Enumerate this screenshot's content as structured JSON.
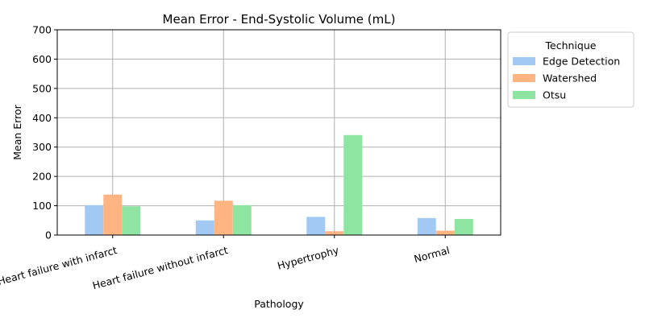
{
  "chart_data": {
    "type": "bar",
    "title": "Mean Error - End-Systolic Volume (mL)",
    "xlabel": "Pathology",
    "ylabel": "Mean Error",
    "categories": [
      "Heart failure with infarct",
      "Heart failure without infarct",
      "Hypertrophy",
      "Normal"
    ],
    "series": [
      {
        "name": "Edge Detection",
        "values": [
          102,
          50,
          62,
          58
        ],
        "color": "#a1c9f4"
      },
      {
        "name": "Watershed",
        "values": [
          138,
          117,
          13,
          15
        ],
        "color": "#ffb482"
      },
      {
        "name": "Otsu",
        "values": [
          98,
          102,
          341,
          55
        ],
        "color": "#8de5a1"
      }
    ],
    "ylim": [
      0,
      700
    ],
    "yticks": [
      0,
      100,
      200,
      300,
      400,
      500,
      600,
      700
    ],
    "grid": true,
    "legend": {
      "title": "Technique",
      "placement": "outside-top-right"
    }
  }
}
